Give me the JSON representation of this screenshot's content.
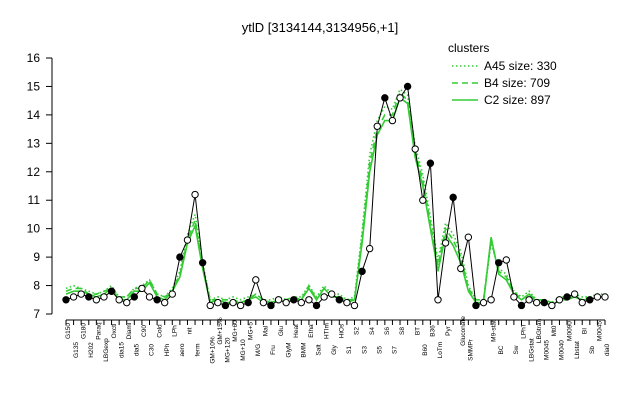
{
  "chart_data": {
    "type": "line",
    "title": "ytlD [3134144,3134956,+1]",
    "categories": [
      "G150",
      "G135",
      "G180",
      "H202",
      "Paraq",
      "LBGexp",
      "Oxctl",
      "dia15",
      "Diami",
      "dia5",
      "C90",
      "C30",
      "Cold",
      "HPh",
      "LPh",
      "aero",
      "nit",
      "ferm",
      null,
      "GM+10%",
      "GM+15%",
      "MG+120",
      "MG+60",
      "MG+10",
      "MG+5",
      "M/G",
      "Mal",
      "Fru",
      "Glu",
      "GlyM",
      "Heat",
      "BMM",
      "Etha",
      "Salt",
      "HTIm",
      "Gly",
      "HiOs",
      "S1",
      "S2",
      "S3",
      "S4",
      "S5",
      "S6",
      "S7",
      "S8",
      null,
      "BT",
      "B60",
      "B36",
      "LoTm",
      "Pyr",
      null,
      "Gluconate",
      "SMMPr",
      null,
      null,
      "M9-stat",
      "BC",
      null,
      "Sw",
      "LPhT",
      "LBGstat",
      "LBGtran",
      "M0045",
      "Mt0",
      "M0040",
      "M0090",
      "Lbstat",
      "BI",
      "Sb",
      "M0045",
      "dia0"
    ],
    "series": [
      {
        "name": "A45 size: 330",
        "color": "#33cc33",
        "linestyle": "dotted",
        "values": [
          7.9,
          8.0,
          7.9,
          7.8,
          7.7,
          7.8,
          8.0,
          7.6,
          7.6,
          7.9,
          8.0,
          8.2,
          7.7,
          7.6,
          7.9,
          8.5,
          9.8,
          10.5,
          8.8,
          7.5,
          7.6,
          7.5,
          7.6,
          7.5,
          7.6,
          7.7,
          7.5,
          7.5,
          7.6,
          7.5,
          7.6,
          7.6,
          8.0,
          7.6,
          8.0,
          7.7,
          7.7,
          7.5,
          7.6,
          9.9,
          12.6,
          13.8,
          14.3,
          14.2,
          14.9,
          14.7,
          12.9,
          11.9,
          10.4,
          8.9,
          10.2,
          9.8,
          9.2,
          8.0,
          7.5,
          7.5,
          9.5,
          8.6,
          8.4,
          7.8,
          7.6,
          7.8,
          7.5,
          7.5,
          7.4,
          7.6,
          7.6,
          7.7,
          7.6,
          7.6,
          7.7,
          7.7
        ]
      },
      {
        "name": "B4 size: 709",
        "color": "#33cc33",
        "linestyle": "dashed",
        "values": [
          7.8,
          7.9,
          7.9,
          7.7,
          7.7,
          7.8,
          7.9,
          7.6,
          7.6,
          7.9,
          7.9,
          8.2,
          7.7,
          7.6,
          7.8,
          8.4,
          9.6,
          10.3,
          8.7,
          7.5,
          7.5,
          7.5,
          7.5,
          7.4,
          7.5,
          7.7,
          7.5,
          7.4,
          7.6,
          7.5,
          7.6,
          7.5,
          8.0,
          7.5,
          7.9,
          7.7,
          7.6,
          7.5,
          7.5,
          9.7,
          12.3,
          13.5,
          14.0,
          14.0,
          14.8,
          14.5,
          12.7,
          11.7,
          10.2,
          8.7,
          10.0,
          9.6,
          9.0,
          7.9,
          7.5,
          7.5,
          9.6,
          8.5,
          8.3,
          7.8,
          7.5,
          7.7,
          7.5,
          7.5,
          7.4,
          7.5,
          7.6,
          7.6,
          7.5,
          7.6,
          7.6,
          7.6
        ]
      },
      {
        "name": "C2 size: 897",
        "color": "#33cc33",
        "linestyle": "solid",
        "values": [
          7.7,
          7.8,
          7.8,
          7.7,
          7.6,
          7.7,
          7.9,
          7.5,
          7.5,
          7.8,
          7.8,
          8.1,
          7.6,
          7.5,
          7.8,
          8.3,
          9.5,
          10.1,
          8.6,
          7.4,
          7.5,
          7.4,
          7.4,
          7.4,
          7.5,
          7.6,
          7.4,
          7.4,
          7.5,
          7.4,
          7.5,
          7.5,
          7.9,
          7.5,
          7.9,
          7.6,
          7.6,
          7.4,
          7.5,
          9.5,
          12.0,
          13.3,
          13.8,
          13.8,
          14.6,
          14.4,
          12.5,
          11.5,
          10.0,
          8.5,
          9.8,
          9.4,
          8.8,
          7.8,
          7.4,
          7.4,
          9.7,
          8.4,
          8.2,
          7.7,
          7.5,
          7.7,
          7.4,
          7.4,
          7.3,
          7.5,
          7.5,
          7.6,
          7.5,
          7.5,
          7.6,
          7.6
        ]
      },
      {
        "name": "ytlD",
        "color": "#000000",
        "linestyle": "solid",
        "points": true,
        "values": [
          7.5,
          7.6,
          7.7,
          7.6,
          7.5,
          7.6,
          7.8,
          7.5,
          7.4,
          7.6,
          7.9,
          7.6,
          7.5,
          7.4,
          7.7,
          9.0,
          9.6,
          11.2,
          8.8,
          7.3,
          7.4,
          7.3,
          7.4,
          7.3,
          7.4,
          8.2,
          7.4,
          7.3,
          7.5,
          7.4,
          7.5,
          7.4,
          7.5,
          7.3,
          7.6,
          7.7,
          7.5,
          7.4,
          7.3,
          8.5,
          9.3,
          13.6,
          14.6,
          13.8,
          14.6,
          15.0,
          12.8,
          11.0,
          12.3,
          7.5,
          9.5,
          11.1,
          8.6,
          9.7,
          7.3,
          7.4,
          7.5,
          8.8,
          8.9,
          7.6,
          7.3,
          7.5,
          7.4,
          7.4,
          7.3,
          7.5,
          7.6,
          7.7,
          7.4,
          7.5,
          7.6,
          7.6
        ]
      }
    ],
    "legend_title": "clusters",
    "legend": "top-right",
    "ylim": [
      7,
      16
    ],
    "yticks": [
      7,
      8,
      9,
      10,
      11,
      12,
      13,
      14,
      15,
      16
    ]
  }
}
